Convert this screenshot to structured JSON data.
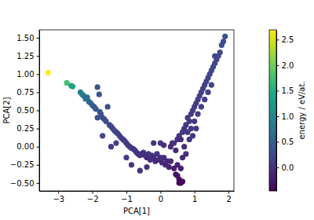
{
  "chart_data": {
    "type": "scatter",
    "color": "viridis",
    "x_label": "PCA[1]",
    "y_label": "PCA[2]",
    "xlim": [
      -3.56,
      2.16
    ],
    "xticks": [
      {
        "value": -3,
        "label": "−3"
      },
      {
        "value": -2,
        "label": "−2"
      },
      {
        "value": -1,
        "label": "−1"
      },
      0,
      1,
      2
    ],
    "ylim": [
      -0.61,
      1.61
    ],
    "yticks": [
      {
        "value": -0.5,
        "label": "−0.50"
      },
      {
        "value": -0.25,
        "label": "−0.25"
      },
      {
        "value": 0,
        "label": "0.00"
      },
      {
        "value": 0.25,
        "label": "0.25"
      },
      {
        "value": 0.5,
        "label": "0.50"
      },
      {
        "value": 0.75,
        "label": "0.75"
      },
      {
        "value": 1,
        "label": "1.00"
      },
      {
        "value": 1.25,
        "label": "1.25"
      },
      {
        "value": 1.5,
        "label": "1.50"
      }
    ],
    "x": [
      -3.3,
      -2.75,
      -2.62,
      -2.58,
      -2.35,
      -2.3,
      -2.25,
      -2.2,
      -2.15,
      -2.1,
      -2.05,
      -2.0,
      -1.95,
      -1.9,
      -1.85,
      -1.8,
      -1.78,
      -1.75,
      -1.7,
      -1.65,
      -1.6,
      -1.85,
      -1.55,
      -1.5,
      -1.45,
      -1.4,
      -1.35,
      -1.3,
      -1.7,
      -1.25,
      -1.2,
      -1.15,
      -1.1,
      -1.05,
      -1.0,
      -0.95,
      -0.9,
      -1.45,
      -1.3,
      -0.85,
      -0.8,
      -0.75,
      -0.7,
      -0.65,
      -0.6,
      -0.55,
      -0.5,
      -0.45,
      -0.4,
      -0.35,
      -0.3,
      -0.25,
      -0.2,
      -0.15,
      -0.1,
      -0.05,
      0.0,
      0.05,
      0.1,
      0.15,
      0.2,
      0.25,
      0.3,
      -0.6,
      -0.4,
      -0.85,
      -1.0,
      0.0,
      -0.2,
      0.1,
      0.4,
      0.45,
      0.5,
      0.55,
      0.6,
      0.65,
      0.55,
      0.5,
      0.3,
      0.35,
      0.4,
      0.45,
      0.5,
      0.55,
      0.6,
      0.65,
      0.7,
      0.7,
      0.75,
      0.8,
      0.8,
      0.85,
      0.85,
      0.9,
      0.9,
      0.95,
      1.0,
      1.0,
      1.05,
      1.1,
      1.1,
      1.15,
      1.2,
      1.2,
      1.25,
      1.3,
      1.3,
      1.35,
      1.4,
      1.4,
      1.45,
      1.5,
      1.5,
      1.55,
      1.6,
      1.6,
      1.65,
      1.7,
      1.75,
      1.8,
      1.85,
      1.9,
      0.95,
      1.05,
      0.75,
      0.65,
      0.6
    ],
    "values": [
      1.02,
      0.88,
      0.84,
      0.83,
      0.75,
      0.72,
      0.7,
      0.66,
      0.68,
      0.62,
      0.6,
      0.57,
      0.55,
      0.52,
      0.82,
      0.72,
      0.48,
      0.45,
      0.4,
      0.38,
      0.35,
      0.4,
      0.55,
      0.3,
      0.28,
      0.25,
      0.22,
      0.2,
      0.15,
      0.18,
      0.15,
      0.12,
      0.1,
      0.08,
      0.05,
      0.02,
      0.0,
      0.0,
      0.05,
      -0.02,
      -0.03,
      -0.05,
      -0.08,
      -0.1,
      -0.12,
      -0.1,
      -0.08,
      -0.12,
      -0.15,
      -0.1,
      -0.18,
      -0.12,
      -0.15,
      -0.2,
      -0.1,
      -0.18,
      -0.15,
      -0.22,
      -0.15,
      -0.25,
      -0.2,
      -0.28,
      -0.2,
      -0.33,
      -0.28,
      -0.25,
      -0.15,
      0.05,
      0.05,
      0.02,
      -0.3,
      -0.38,
      -0.4,
      -0.45,
      -0.5,
      -0.48,
      -0.5,
      -0.25,
      0.0,
      0.05,
      0.05,
      -0.05,
      0.1,
      0.15,
      0.1,
      0.2,
      0.25,
      0.0,
      0.3,
      0.2,
      0.4,
      0.35,
      0.1,
      0.45,
      0.25,
      0.5,
      0.55,
      0.35,
      0.6,
      0.65,
      0.45,
      0.7,
      0.75,
      0.55,
      0.8,
      0.85,
      0.65,
      0.9,
      0.95,
      0.75,
      1.0,
      1.05,
      0.85,
      1.1,
      1.15,
      1.25,
      1.2,
      1.25,
      1.3,
      1.4,
      1.45,
      1.52,
      0.15,
      0.25,
      -0.1,
      -0.15,
      -0.3
    ],
    "energy": [
      2.69,
      1.75,
      1.35,
      1.3,
      0.95,
      0.85,
      0.8,
      0.7,
      0.65,
      0.6,
      0.55,
      0.5,
      0.45,
      0.4,
      0.35,
      0.4,
      0.38,
      0.35,
      0.3,
      0.3,
      0.28,
      0.3,
      0.3,
      0.25,
      0.22,
      0.2,
      0.2,
      0.18,
      0.2,
      0.15,
      0.15,
      0.12,
      0.1,
      0.1,
      0.08,
      0.05,
      0.05,
      0.1,
      0.12,
      0.05,
      0.03,
      0.02,
      0.0,
      0.0,
      -0.02,
      0.0,
      0.02,
      -0.02,
      -0.05,
      0.0,
      -0.05,
      0.0,
      -0.05,
      -0.05,
      0.0,
      -0.08,
      -0.05,
      -0.1,
      -0.05,
      -0.12,
      -0.1,
      -0.15,
      -0.1,
      0.0,
      0.0,
      0.05,
      0.08,
      0.02,
      0.0,
      -0.02,
      -0.2,
      -0.25,
      -0.3,
      -0.35,
      -0.45,
      -0.4,
      -0.42,
      -0.2,
      -0.05,
      -0.05,
      0.0,
      -0.1,
      0.0,
      0.02,
      0.0,
      0.05,
      0.05,
      -0.05,
      0.05,
      0.05,
      0.08,
      0.05,
      0.05,
      0.08,
      0.05,
      0.1,
      0.1,
      0.08,
      0.1,
      0.12,
      0.1,
      0.12,
      0.15,
      0.12,
      0.15,
      0.15,
      0.12,
      0.18,
      0.18,
      0.15,
      0.2,
      0.2,
      0.18,
      0.22,
      0.22,
      0.25,
      0.22,
      0.25,
      0.25,
      0.3,
      0.3,
      0.35,
      0.05,
      0.08,
      0.0,
      -0.1,
      -0.2
    ],
    "colorbar": {
      "label": "energy / eV/at.",
      "lim": [
        -0.46,
        2.69
      ],
      "ticks": [
        {
          "value": 0,
          "label": "0.0"
        },
        {
          "value": 0.5,
          "label": "0.5"
        },
        {
          "value": 1,
          "label": "1.0"
        },
        {
          "value": 1.5,
          "label": "1.5"
        },
        {
          "value": 2,
          "label": "2.0"
        },
        {
          "value": 2.5,
          "label": "2.5"
        }
      ]
    }
  }
}
